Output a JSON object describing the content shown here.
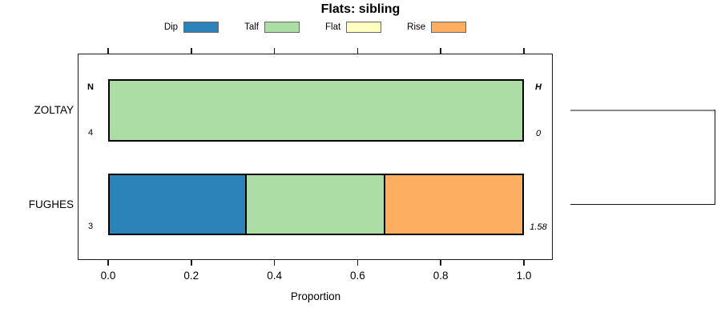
{
  "title": "Flats: sibling",
  "chart_data": {
    "type": "bar",
    "orientation": "horizontal-stacked-proportion",
    "title": "Flats: sibling",
    "xlabel": "Proportion",
    "xlim": [
      0,
      1
    ],
    "grid": false,
    "legend_position": "top",
    "xticks": [
      {
        "label": "0.0",
        "value": 0.0
      },
      {
        "label": "0.2",
        "value": 0.2
      },
      {
        "label": "0.4",
        "value": 0.4
      },
      {
        "label": "0.6",
        "value": 0.6
      },
      {
        "label": "0.8",
        "value": 0.8
      },
      {
        "label": "1.0",
        "value": 1.0
      }
    ],
    "legend": [
      {
        "label": "Dip",
        "color": "#2b83ba"
      },
      {
        "label": "Talf",
        "color": "#abdda4"
      },
      {
        "label": "Flat",
        "color": "#ffffbf"
      },
      {
        "label": "Rise",
        "color": "#fdae61"
      }
    ],
    "columns": {
      "count_header": "N",
      "entropy_header": "H"
    },
    "rows": [
      {
        "label": "ZOLTAY",
        "count": "4",
        "entropy": "0",
        "segments": [
          {
            "category": "Talf",
            "value": 1.0
          }
        ]
      },
      {
        "label": "FUGHES",
        "count": "3",
        "entropy": "1.58",
        "segments": [
          {
            "category": "Dip",
            "value": 0.3333
          },
          {
            "category": "Talf",
            "value": 0.3334
          },
          {
            "category": "Rise",
            "value": 0.3333
          }
        ]
      }
    ]
  },
  "colors": {
    "bar_border": "#000000",
    "legend_swatch_border": "#666666",
    "plot_border": "#1a1a1a",
    "cluster_branch_top": "#898989",
    "cluster_branch_bottom": "#121212"
  }
}
